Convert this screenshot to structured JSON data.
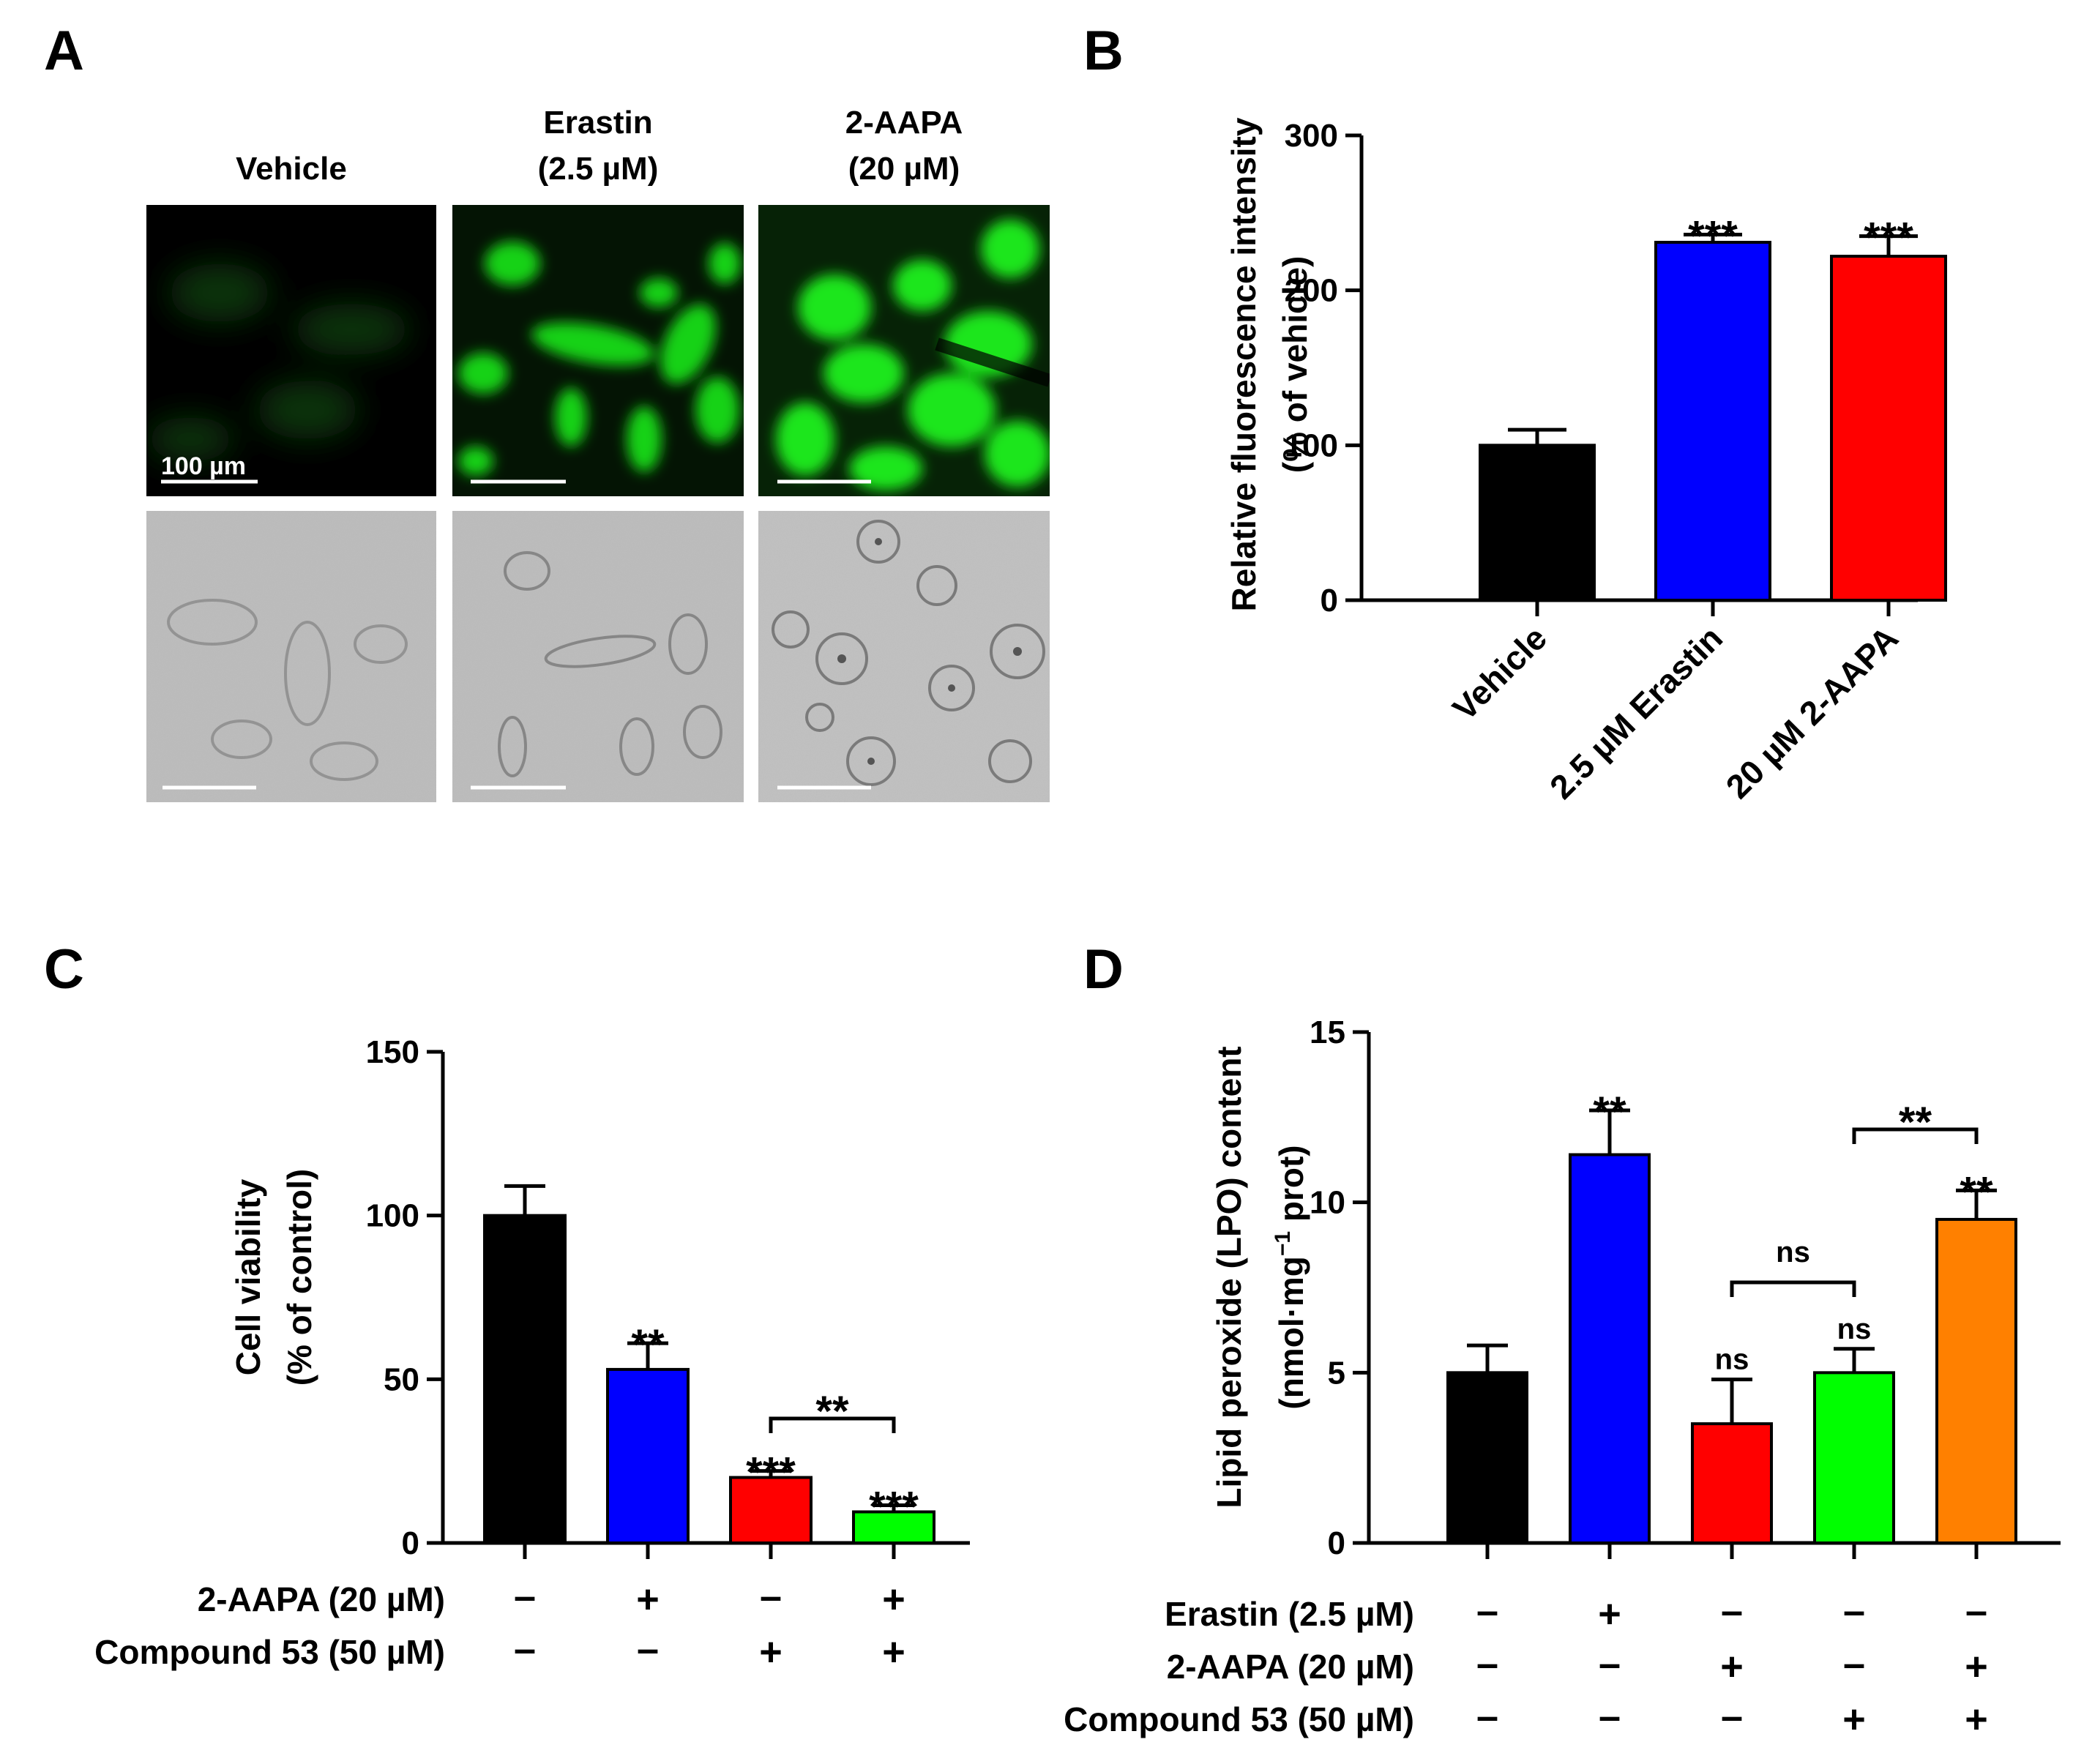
{
  "panels": {
    "A": {
      "label": "A",
      "column_titles": [
        [
          "Vehicle"
        ],
        [
          "Erastin",
          "(2.5 µM)"
        ],
        [
          "2-AAPA",
          "(20 µM)"
        ]
      ],
      "scale_bar_label": "100 µm",
      "fluorescence_color": "#00e000",
      "brightfield_color": "#bcbcbc"
    },
    "B": {
      "label": "B",
      "chart_data": {
        "type": "bar",
        "categories": [
          "Vehicle",
          "2.5 µM Erastin",
          "20 µM 2-AAPA"
        ],
        "values": [
          100,
          231,
          222
        ],
        "errors": [
          10,
          5,
          13
        ],
        "colors": [
          "#000000",
          "#0000ff",
          "#ff0000"
        ],
        "significance": [
          "",
          "***",
          "***"
        ],
        "ylabel": [
          "Relative fluorescence intensity",
          "(% of vehicle)"
        ],
        "ylim": [
          0,
          300
        ],
        "yticks": [
          0,
          100,
          200,
          300
        ]
      }
    },
    "C": {
      "label": "C",
      "chart_data": {
        "type": "bar",
        "values": [
          100,
          53,
          20,
          9.5
        ],
        "errors": [
          9,
          8,
          2,
          2
        ],
        "colors": [
          "#000000",
          "#0000ff",
          "#ff0000",
          "#00ff00"
        ],
        "significance": [
          "",
          "**",
          "***",
          "***"
        ],
        "brackets": [
          {
            "from": 2,
            "to": 3,
            "label": "**"
          }
        ],
        "ylabel": [
          "Cell viability",
          "(% of control)"
        ],
        "ylim": [
          0,
          150
        ],
        "yticks": [
          0,
          50,
          100,
          150
        ],
        "conditions": [
          {
            "label": "2-AAPA (20 µM)",
            "signs": [
              "–",
              "+",
              "–",
              "+"
            ]
          },
          {
            "label": "Compound 53 (50 µM)",
            "signs": [
              "–",
              "–",
              "+",
              "+"
            ]
          }
        ]
      }
    },
    "D": {
      "label": "D",
      "chart_data": {
        "type": "bar",
        "values": [
          5.0,
          11.4,
          3.5,
          5.0,
          9.5
        ],
        "errors": [
          0.8,
          1.3,
          1.3,
          0.7,
          0.85
        ],
        "colors": [
          "#000000",
          "#0000ff",
          "#ff0000",
          "#00ff00",
          "#ff8000"
        ],
        "significance": [
          "",
          "**",
          "ns",
          "ns",
          "**"
        ],
        "brackets": [
          {
            "from": 2,
            "to": 3,
            "label": "ns"
          },
          {
            "from": 3,
            "to": 4,
            "label": "**"
          }
        ],
        "ylabel": [
          "Lipid peroxide (LPO) content",
          "(nmol·mg",
          "−1",
          " prot)"
        ],
        "ylim": [
          0,
          15
        ],
        "yticks": [
          0,
          5,
          10,
          15
        ],
        "conditions": [
          {
            "label": "Erastin (2.5 µM)",
            "signs": [
              "–",
              "+",
              "–",
              "–",
              "–"
            ]
          },
          {
            "label": "2-AAPA (20 µM)",
            "signs": [
              "–",
              "–",
              "+",
              "–",
              "+"
            ]
          },
          {
            "label": "Compound 53 (50 µM)",
            "signs": [
              "–",
              "–",
              "–",
              "+",
              "+"
            ]
          }
        ]
      }
    }
  }
}
